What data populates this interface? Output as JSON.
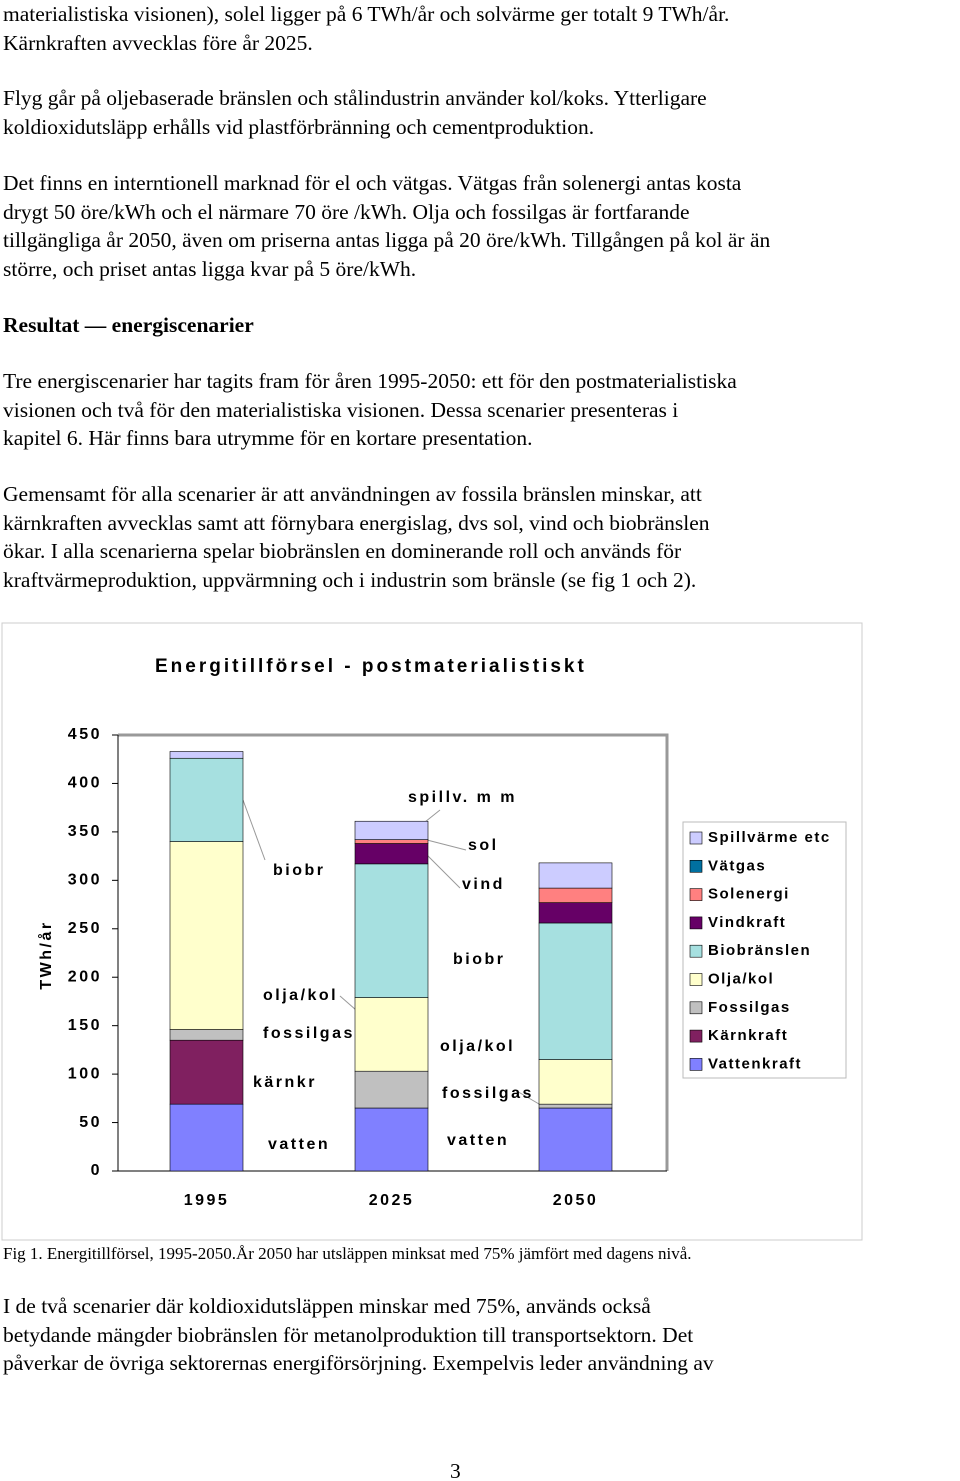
{
  "paragraphs": [
    [
      "materialistiska visionen), solel ligger på 6 TWh/år och solvärme ger totalt 9 TWh/år.",
      "Kärnkraften avvecklas före år 2025."
    ],
    [
      "Flyg går på oljebaserade bränslen och stålindustrin använder kol/koks. Ytterligare",
      "koldioxidutsläpp erhålls vid plastförbränning och cementproduktion."
    ],
    [
      "Det finns en interntionell marknad för el och vätgas. Vätgas från solenergi antas kosta",
      "drygt 50 öre/kWh och el närmare 70 öre /kWh. Olja och fossilgas är fortfarande",
      "tillgängliga år 2050, även om priserna antas ligga på 20 öre/kWh. Tillgången på kol är än",
      "större, och priset antas ligga kvar på 5 öre/kWh."
    ]
  ],
  "heading": "Resultat — energiscenarier",
  "paragraphs_after": [
    [
      "Tre energiscenarier har tagits fram för åren 1995-2050: ett för den postmaterialistiska",
      "visionen och två för den materialistiska visionen. Dessa scenarier presenteras i",
      "kapitel 6. Här finns bara utrymme för en kortare presentation."
    ],
    [
      "Gemensamt för alla scenarier är att användningen av fossila bränslen minskar, att",
      "kärnkraften avvecklas samt att förnybara energislag, dvs sol, vind och biobränslen",
      "ökar. I alla scenarierna spelar biobränslen en dominerande roll och används för",
      "kraftvärmeproduktion, uppvärmning och i industrin som bränsle (se fig 1 och 2)."
    ]
  ],
  "chart_data": {
    "type": "stacked-bar",
    "title": "Energitillförsel - postmaterialistiskt",
    "y_label": "TWh/år",
    "categories": [
      "1995",
      "2025",
      "2050"
    ],
    "ylim": [
      0,
      450
    ],
    "yticks": [
      0,
      50,
      100,
      150,
      200,
      250,
      300,
      350,
      400,
      450
    ],
    "series": [
      {
        "name": "Vattenkraft",
        "color": "#8080ff",
        "values": [
          69,
          65,
          65
        ]
      },
      {
        "name": "Kärnkraft",
        "color": "#802060",
        "values": [
          66,
          0,
          0
        ]
      },
      {
        "name": "Fossilgas",
        "color": "#c0c0c0",
        "values": [
          11,
          38,
          4
        ]
      },
      {
        "name": "Olja/kol",
        "color": "#ffffcc",
        "values": [
          194,
          76,
          46
        ]
      },
      {
        "name": "Biobränslen",
        "color": "#a6e0e0",
        "values": [
          86,
          138,
          141
        ]
      },
      {
        "name": "Vindkraft",
        "color": "#660066",
        "values": [
          0,
          21,
          21
        ]
      },
      {
        "name": "Solenergi",
        "color": "#ff8080",
        "values": [
          0,
          4,
          15
        ]
      },
      {
        "name": "Vätgas",
        "color": "#0070a0",
        "values": [
          0,
          0,
          0
        ]
      },
      {
        "name": "Spillvärme etc",
        "color": "#ccccff",
        "values": [
          7,
          19,
          26
        ]
      }
    ],
    "annotations": [
      "spillv. m m",
      "biobr",
      "sol",
      "vind",
      "olja/kol",
      "fossilgas",
      "kärnkr",
      "vatten",
      "biobr",
      "olja/kol",
      "fossilgas",
      "vatten"
    ]
  },
  "caption": "Fig 1. Energitillförsel, 1995-2050.År 2050 har utsläppen minksat med 75% jämfört med dagens nivå.",
  "paragraphs_end": [
    [
      "I de två scenarier där koldioxidutsläppen minskar med 75%, används också",
      "betydande mängder biobränslen för metanolproduktion till transportsektorn. Det",
      "påverkar de övriga sektorernas energiförsörjning. Exempelvis leder användning av"
    ]
  ],
  "page_number": "3"
}
